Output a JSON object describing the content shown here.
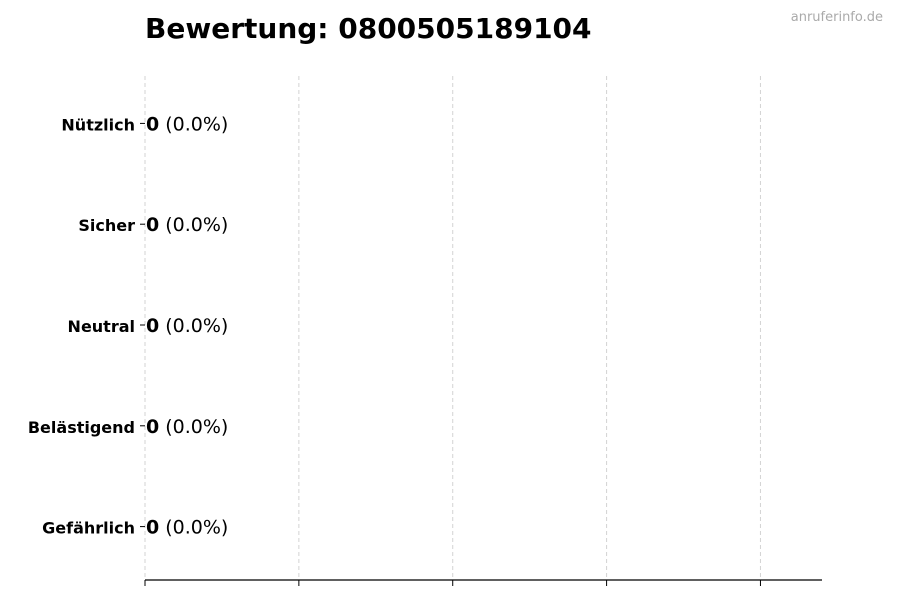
{
  "chart_data": {
    "type": "bar",
    "orientation": "horizontal",
    "title": "Bewertung: 0800505189104",
    "categories": [
      "Nützlich",
      "Sicher",
      "Neutral",
      "Belästigend",
      "Gefährlich"
    ],
    "values": [
      0,
      0,
      0,
      0,
      0
    ],
    "data_labels": [
      {
        "count": "0",
        "percent": "(0.0%)"
      },
      {
        "count": "0",
        "percent": "(0.0%)"
      },
      {
        "count": "0",
        "percent": "(0.0%)"
      },
      {
        "count": "0",
        "percent": "(0.0%)"
      },
      {
        "count": "0",
        "percent": "(0.0%)"
      }
    ],
    "xlabel": "",
    "ylabel": "",
    "xlim": [
      0,
      4.4
    ],
    "xticks": [
      0,
      1,
      2,
      3,
      4
    ],
    "xtick_labels_shown": false,
    "grid": "x dashed",
    "grid_color": "#d3d3d3",
    "bar_edge_color": "#000000"
  },
  "watermark": "anruferinfo.de"
}
